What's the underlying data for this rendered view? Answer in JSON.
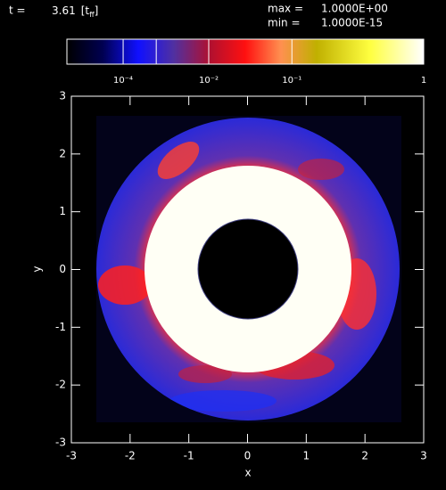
{
  "chart_data": {
    "type": "image",
    "time_label": "t =",
    "time_value": 3.61,
    "time_unit_base": "[t",
    "time_unit_sub": "ff",
    "time_unit_close": "]",
    "max_label": "max =",
    "max_value": {
      "value": 1,
      "label": "1.0000E+00"
    },
    "min_label": "min =",
    "min_value": {
      "value": 1e-15,
      "label": "1.0000E-15"
    },
    "colorbar_lim": [
      1e-15,
      1
    ],
    "colorbar_scale": "power",
    "colorbar_power": 0.2,
    "colorbar_ticks": [
      {
        "value": 0.0001,
        "label": "10⁻⁴"
      },
      {
        "value": 0.001,
        "label": null
      },
      {
        "value": 0.01,
        "label": "10⁻²"
      },
      {
        "value": 0.1,
        "label": "10⁻¹"
      },
      1
    ],
    "x_label": "x",
    "y_label": "y",
    "xlim": [
      -3,
      3
    ],
    "ylim": [
      -3,
      3
    ],
    "xticks": [
      -3,
      -2,
      -1,
      0,
      1,
      2,
      3
    ],
    "yticks": [
      -3,
      -2,
      -1,
      0,
      1,
      2,
      3
    ]
  }
}
